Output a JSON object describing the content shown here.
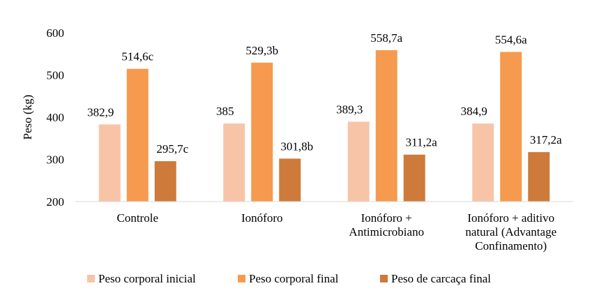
{
  "chart_data": {
    "type": "bar",
    "ylabel": "Peso (kg)",
    "ylim": [
      200,
      600
    ],
    "yticks": [
      "200",
      "300",
      "400",
      "500",
      "600"
    ],
    "categories": [
      [
        "Controle"
      ],
      [
        "Ionóforo"
      ],
      [
        "Ionóforo +",
        "Antimicrobiano"
      ],
      [
        "Ionóforo + aditivo",
        "natural (Advantage",
        "Confinamento)"
      ]
    ],
    "series": [
      {
        "name": "Peso corporal inicial",
        "color": "#F8C4A8",
        "values": [
          382.9,
          385,
          389.3,
          384.9
        ],
        "labels": [
          "382,9",
          "385",
          "389,3",
          "384,9"
        ]
      },
      {
        "name": "Peso corporal final",
        "color": "#F59A4E",
        "values": [
          514.6,
          529.3,
          558.7,
          554.6
        ],
        "labels": [
          "514,6c",
          "529,3b",
          "558,7a",
          "554,6a"
        ]
      },
      {
        "name": "Peso de carcaça final",
        "color": "#CD7A3A",
        "values": [
          295.7,
          301.8,
          311.2,
          317.2
        ],
        "labels": [
          "295,7c",
          "301,8b",
          "311,2a",
          "317,2a"
        ]
      }
    ],
    "grid": false,
    "legend": "bottom"
  }
}
